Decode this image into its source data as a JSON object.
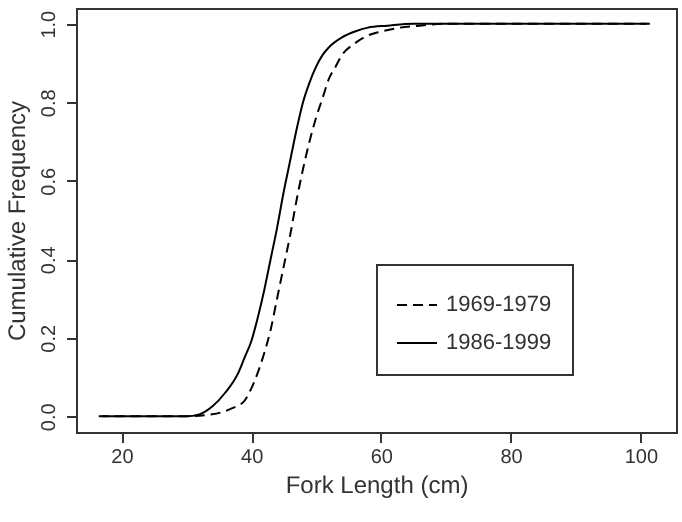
{
  "chart_data": {
    "type": "line",
    "xlabel": "Fork Length (cm)",
    "ylabel": "Cumulative Frequency",
    "xlim": [
      13,
      105.5
    ],
    "xticks": [
      20,
      40,
      60,
      80,
      100
    ],
    "ylim": [
      -0.04,
      1.04
    ],
    "yticks": [
      {
        "value": 0,
        "label": "0.0"
      },
      0.2,
      0.4,
      0.6,
      0.8,
      {
        "value": 1,
        "label": "1.0"
      }
    ],
    "grid": false,
    "legend": "right",
    "series": [
      {
        "name": "1969-1979",
        "color": "#000000",
        "line_style": "dashed",
        "x": [
          16.5,
          30,
          34,
          37,
          39,
          40,
          41,
          42,
          43,
          44,
          45,
          46,
          47,
          48,
          49,
          50,
          51,
          52,
          53,
          54,
          56,
          58,
          60,
          63,
          66,
          70,
          80,
          102
        ],
        "values": [
          0,
          0,
          0.005,
          0.02,
          0.04,
          0.07,
          0.11,
          0.16,
          0.22,
          0.3,
          0.38,
          0.46,
          0.55,
          0.63,
          0.7,
          0.76,
          0.81,
          0.86,
          0.89,
          0.92,
          0.95,
          0.97,
          0.98,
          0.99,
          0.995,
          1,
          1,
          1
        ]
      },
      {
        "name": "1986-1999",
        "color": "#000000",
        "line_style": "solid",
        "x": [
          17,
          30,
          32,
          34,
          36,
          38,
          39,
          40,
          41,
          42,
          43,
          44,
          45,
          46,
          47,
          48,
          49,
          50,
          51,
          52,
          54,
          56,
          58,
          61,
          65,
          70,
          80,
          101
        ],
        "values": [
          0,
          0,
          0.005,
          0.025,
          0.06,
          0.11,
          0.15,
          0.19,
          0.25,
          0.32,
          0.4,
          0.48,
          0.57,
          0.65,
          0.73,
          0.8,
          0.85,
          0.89,
          0.92,
          0.94,
          0.965,
          0.98,
          0.99,
          0.995,
          1,
          1,
          1,
          1
        ]
      }
    ]
  }
}
